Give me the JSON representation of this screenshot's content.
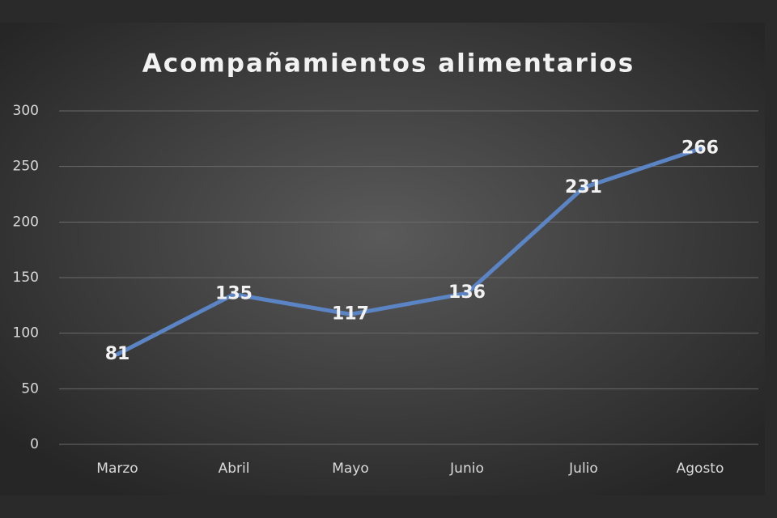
{
  "chart_data": {
    "type": "line",
    "title": "Acompañamientos alimentarios",
    "categories": [
      "Marzo",
      "Abril",
      "Mayo",
      "Junio",
      "Julio",
      "Agosto"
    ],
    "values": [
      81,
      135,
      117,
      136,
      231,
      266
    ],
    "color": "#5b84c4",
    "ylim": [
      0,
      300
    ],
    "yticks": [
      0,
      50,
      100,
      150,
      200,
      250,
      300
    ],
    "grid": true
  }
}
